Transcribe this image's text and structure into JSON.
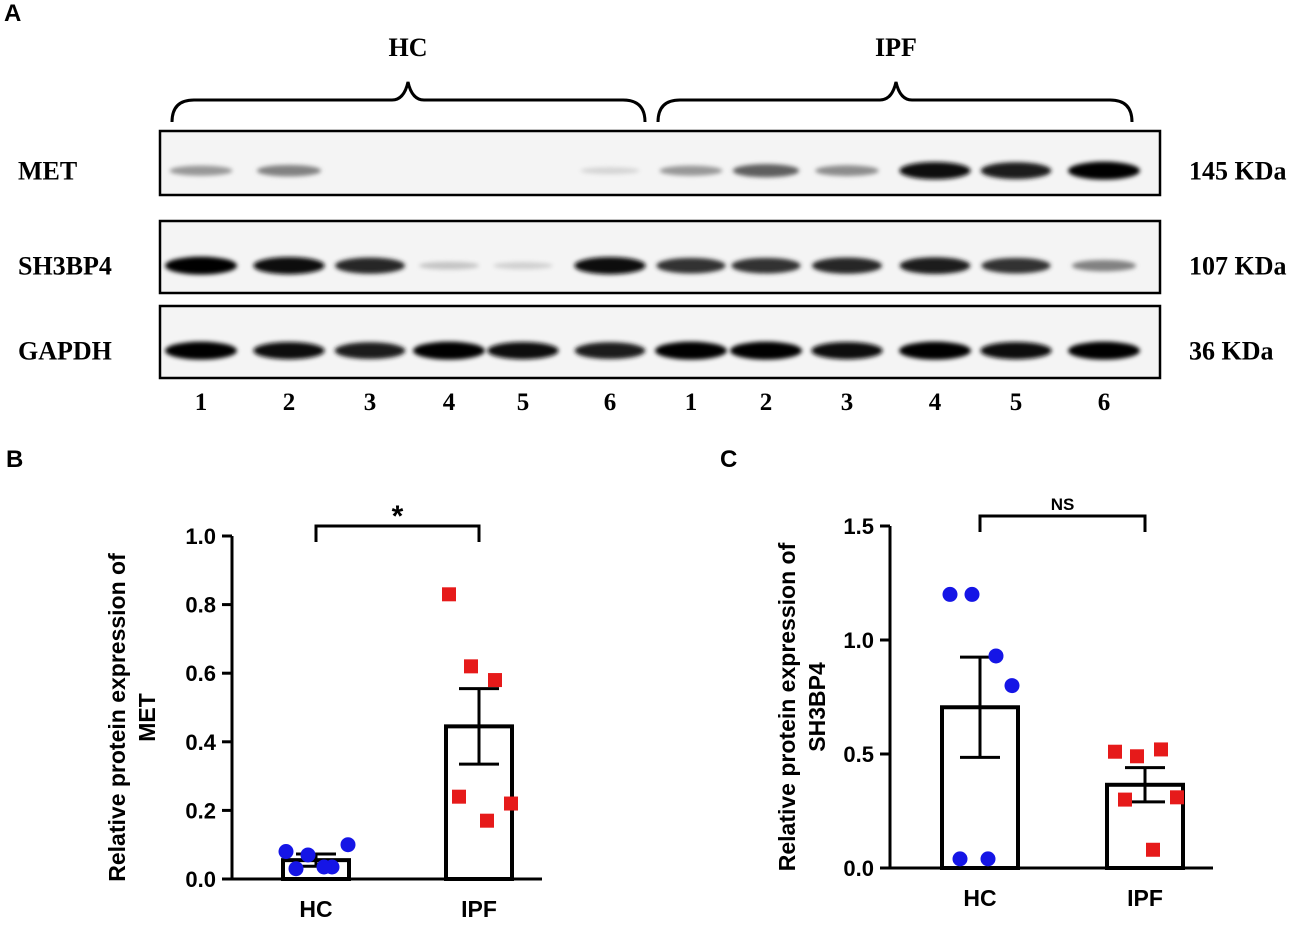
{
  "panels": {
    "a": "A",
    "b": "B",
    "c": "C"
  },
  "blot": {
    "groups": [
      "HC",
      "IPF"
    ],
    "rows": [
      {
        "label": "MET",
        "size": "145 KDa",
        "intensity": [
          0.35,
          0.45,
          0.02,
          0.0,
          0.02,
          0.08,
          0.35,
          0.6,
          0.4,
          0.95,
          0.9,
          1.0
        ]
      },
      {
        "label": "SH3BP4",
        "size": "107 KDa",
        "intensity": [
          1.0,
          0.95,
          0.85,
          0.15,
          0.1,
          0.95,
          0.8,
          0.8,
          0.85,
          0.9,
          0.8,
          0.45
        ]
      },
      {
        "label": "GAPDH",
        "size": "36 KDa",
        "intensity": [
          1.0,
          0.95,
          0.9,
          1.0,
          0.95,
          0.9,
          1.0,
          1.0,
          0.95,
          1.0,
          0.95,
          1.0
        ]
      }
    ],
    "lanes": [
      "1",
      "2",
      "3",
      "4",
      "5",
      "6",
      "1",
      "2",
      "3",
      "4",
      "5",
      "6"
    ]
  },
  "chart_data": [
    {
      "type": "bar",
      "panel": "B",
      "ylabel": [
        "Relative protein expression of",
        "MET"
      ],
      "categories": [
        "HC",
        "IPF"
      ],
      "ylim": [
        0,
        1.0
      ],
      "yticks": [
        "0.0",
        "0.2",
        "0.4",
        "0.6",
        "0.8",
        "1.0"
      ],
      "ytick_values": [
        0,
        0.2,
        0.4,
        0.6,
        0.8,
        1.0
      ],
      "means": [
        0.055,
        0.445
      ],
      "sem": [
        0.018,
        0.11
      ],
      "points": [
        [
          0.08,
          0.07,
          0.035,
          0.1,
          0.03,
          0.035
        ],
        [
          0.83,
          0.62,
          0.58,
          0.22,
          0.24,
          0.17
        ]
      ],
      "colors": [
        "#1515e6",
        "#e61a1a"
      ],
      "significance": "*"
    },
    {
      "type": "bar",
      "panel": "C",
      "ylabel": [
        "Relative protein expression of",
        "SH3BP4"
      ],
      "categories": [
        "HC",
        "IPF"
      ],
      "ylim": [
        0,
        1.5
      ],
      "yticks": [
        "0.0",
        "0.5",
        "1.0",
        "1.5"
      ],
      "ytick_values": [
        0,
        0.5,
        1.0,
        1.5
      ],
      "means": [
        0.705,
        0.365
      ],
      "sem": [
        0.22,
        0.075
      ],
      "points": [
        [
          1.2,
          1.2,
          0.93,
          0.8,
          0.04,
          0.04
        ],
        [
          0.51,
          0.49,
          0.52,
          0.31,
          0.3,
          0.08
        ]
      ],
      "colors": [
        "#1515e6",
        "#e61a1a"
      ],
      "significance": "NS"
    }
  ]
}
